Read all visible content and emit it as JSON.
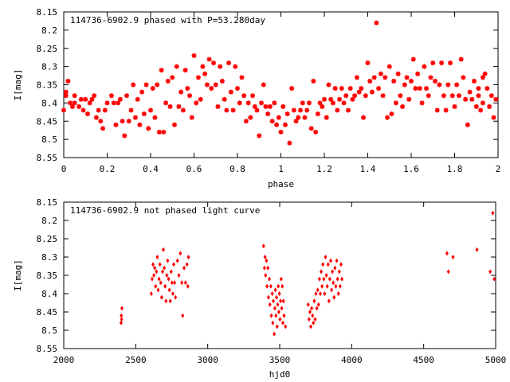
{
  "chart_data": [
    {
      "type": "scatter",
      "title": "114736-6902.9 phased with P=53.280day",
      "xlabel": "phase",
      "ylabel": "I[mag]",
      "xlim": [
        0,
        2
      ],
      "ylim": [
        8.55,
        8.15
      ],
      "y_inverted": true,
      "grid": false,
      "marker_color": "#ff0000",
      "x_ticks": [
        0,
        0.2,
        0.4,
        0.6,
        0.8,
        1,
        1.2,
        1.4,
        1.6,
        1.8,
        2
      ],
      "x_tick_labels": [
        "0",
        "0.2",
        "0.4",
        "0.6",
        "0.8",
        "1",
        "1.2",
        "1.4",
        "1.6",
        "1.8",
        "2"
      ],
      "y_ticks": [
        8.15,
        8.2,
        8.25,
        8.3,
        8.35,
        8.4,
        8.45,
        8.5,
        8.55
      ],
      "y_tick_labels": [
        "8.15",
        "8.2",
        "8.25",
        "8.3",
        "8.35",
        "8.4",
        "8.45",
        "8.5",
        "8.55"
      ],
      "points": [
        [
          0.0,
          8.42
        ],
        [
          0.01,
          8.37
        ],
        [
          0.01,
          8.38
        ],
        [
          0.02,
          8.34
        ],
        [
          0.03,
          8.4
        ],
        [
          0.04,
          8.41
        ],
        [
          0.05,
          8.38
        ],
        [
          0.05,
          8.4
        ],
        [
          0.07,
          8.41
        ],
        [
          0.08,
          8.39
        ],
        [
          0.09,
          8.42
        ],
        [
          0.1,
          8.39
        ],
        [
          0.11,
          8.43
        ],
        [
          0.12,
          8.4
        ],
        [
          0.13,
          8.39
        ],
        [
          0.14,
          8.38
        ],
        [
          0.15,
          8.44
        ],
        [
          0.16,
          8.42
        ],
        [
          0.17,
          8.45
        ],
        [
          0.18,
          8.47
        ],
        [
          0.19,
          8.42
        ],
        [
          0.2,
          8.4
        ],
        [
          0.22,
          8.38
        ],
        [
          0.23,
          8.4
        ],
        [
          0.24,
          8.46
        ],
        [
          0.25,
          8.4
        ],
        [
          0.26,
          8.39
        ],
        [
          0.27,
          8.45
        ],
        [
          0.28,
          8.49
        ],
        [
          0.29,
          8.38
        ],
        [
          0.3,
          8.45
        ],
        [
          0.31,
          8.42
        ],
        [
          0.32,
          8.35
        ],
        [
          0.33,
          8.44
        ],
        [
          0.34,
          8.39
        ],
        [
          0.35,
          8.46
        ],
        [
          0.36,
          8.37
        ],
        [
          0.37,
          8.43
        ],
        [
          0.38,
          8.35
        ],
        [
          0.39,
          8.47
        ],
        [
          0.4,
          8.42
        ],
        [
          0.41,
          8.36
        ],
        [
          0.42,
          8.44
        ],
        [
          0.43,
          8.35
        ],
        [
          0.44,
          8.48
        ],
        [
          0.45,
          8.31
        ],
        [
          0.46,
          8.48
        ],
        [
          0.47,
          8.4
        ],
        [
          0.48,
          8.34
        ],
        [
          0.49,
          8.41
        ],
        [
          0.5,
          8.33
        ],
        [
          0.51,
          8.46
        ],
        [
          0.52,
          8.3
        ],
        [
          0.53,
          8.41
        ],
        [
          0.54,
          8.37
        ],
        [
          0.55,
          8.42
        ],
        [
          0.56,
          8.31
        ],
        [
          0.57,
          8.36
        ],
        [
          0.58,
          8.38
        ],
        [
          0.59,
          8.44
        ],
        [
          0.6,
          8.27
        ],
        [
          0.61,
          8.4
        ],
        [
          0.62,
          8.33
        ],
        [
          0.63,
          8.39
        ],
        [
          0.64,
          8.3
        ],
        [
          0.65,
          8.32
        ],
        [
          0.66,
          8.35
        ],
        [
          0.67,
          8.28
        ],
        [
          0.68,
          8.36
        ],
        [
          0.69,
          8.29
        ],
        [
          0.7,
          8.35
        ],
        [
          0.71,
          8.41
        ],
        [
          0.72,
          8.3
        ],
        [
          0.73,
          8.34
        ],
        [
          0.74,
          8.39
        ],
        [
          0.75,
          8.42
        ],
        [
          0.76,
          8.29
        ],
        [
          0.77,
          8.37
        ],
        [
          0.78,
          8.42
        ],
        [
          0.79,
          8.3
        ],
        [
          0.8,
          8.36
        ],
        [
          0.81,
          8.4
        ],
        [
          0.82,
          8.33
        ],
        [
          0.83,
          8.38
        ],
        [
          0.84,
          8.45
        ],
        [
          0.85,
          8.4
        ],
        [
          0.86,
          8.44
        ],
        [
          0.87,
          8.38
        ],
        [
          0.88,
          8.41
        ],
        [
          0.89,
          8.42
        ],
        [
          0.9,
          8.49
        ],
        [
          0.91,
          8.4
        ],
        [
          0.92,
          8.35
        ],
        [
          0.93,
          8.41
        ],
        [
          0.94,
          8.43
        ],
        [
          0.95,
          8.41
        ],
        [
          0.96,
          8.45
        ],
        [
          0.97,
          8.4
        ],
        [
          0.98,
          8.46
        ],
        [
          0.99,
          8.44
        ],
        [
          1.0,
          8.48
        ],
        [
          1.01,
          8.41
        ],
        [
          1.02,
          8.46
        ],
        [
          1.03,
          8.43
        ],
        [
          1.04,
          8.51
        ],
        [
          1.05,
          8.36
        ],
        [
          1.06,
          8.42
        ],
        [
          1.07,
          8.45
        ],
        [
          1.08,
          8.44
        ],
        [
          1.09,
          8.42
        ],
        [
          1.1,
          8.4
        ],
        [
          1.11,
          8.44
        ],
        [
          1.12,
          8.42
        ],
        [
          1.13,
          8.4
        ],
        [
          1.14,
          8.47
        ],
        [
          1.15,
          8.34
        ],
        [
          1.16,
          8.48
        ],
        [
          1.17,
          8.43
        ],
        [
          1.18,
          8.4
        ],
        [
          1.19,
          8.41
        ],
        [
          1.2,
          8.39
        ],
        [
          1.21,
          8.44
        ],
        [
          1.22,
          8.35
        ],
        [
          1.23,
          8.39
        ],
        [
          1.24,
          8.4
        ],
        [
          1.25,
          8.36
        ],
        [
          1.26,
          8.42
        ],
        [
          1.27,
          8.39
        ],
        [
          1.28,
          8.36
        ],
        [
          1.29,
          8.4
        ],
        [
          1.3,
          8.38
        ],
        [
          1.31,
          8.42
        ],
        [
          1.32,
          8.36
        ],
        [
          1.33,
          8.39
        ],
        [
          1.34,
          8.38
        ],
        [
          1.35,
          8.33
        ],
        [
          1.36,
          8.37
        ],
        [
          1.37,
          8.36
        ],
        [
          1.38,
          8.44
        ],
        [
          1.39,
          8.38
        ],
        [
          1.4,
          8.29
        ],
        [
          1.41,
          8.34
        ],
        [
          1.42,
          8.37
        ],
        [
          1.43,
          8.33
        ],
        [
          1.44,
          8.18
        ],
        [
          1.45,
          8.36
        ],
        [
          1.46,
          8.32
        ],
        [
          1.47,
          8.38
        ],
        [
          1.48,
          8.33
        ],
        [
          1.49,
          8.44
        ],
        [
          1.5,
          8.3
        ],
        [
          1.51,
          8.43
        ],
        [
          1.52,
          8.34
        ],
        [
          1.53,
          8.4
        ],
        [
          1.54,
          8.32
        ],
        [
          1.55,
          8.38
        ],
        [
          1.56,
          8.41
        ],
        [
          1.57,
          8.35
        ],
        [
          1.58,
          8.33
        ],
        [
          1.59,
          8.39
        ],
        [
          1.6,
          8.34
        ],
        [
          1.61,
          8.28
        ],
        [
          1.62,
          8.36
        ],
        [
          1.63,
          8.32
        ],
        [
          1.64,
          8.36
        ],
        [
          1.65,
          8.4
        ],
        [
          1.66,
          8.3
        ],
        [
          1.67,
          8.36
        ],
        [
          1.68,
          8.38
        ],
        [
          1.69,
          8.33
        ],
        [
          1.7,
          8.29
        ],
        [
          1.71,
          8.34
        ],
        [
          1.72,
          8.42
        ],
        [
          1.73,
          8.35
        ],
        [
          1.74,
          8.29
        ],
        [
          1.75,
          8.38
        ],
        [
          1.76,
          8.42
        ],
        [
          1.77,
          8.35
        ],
        [
          1.78,
          8.29
        ],
        [
          1.79,
          8.38
        ],
        [
          1.8,
          8.41
        ],
        [
          1.81,
          8.35
        ],
        [
          1.82,
          8.38
        ],
        [
          1.83,
          8.28
        ],
        [
          1.84,
          8.33
        ],
        [
          1.85,
          8.39
        ],
        [
          1.86,
          8.46
        ],
        [
          1.87,
          8.37
        ],
        [
          1.88,
          8.39
        ],
        [
          1.89,
          8.34
        ],
        [
          1.9,
          8.41
        ],
        [
          1.91,
          8.38
        ],
        [
          1.92,
          8.42
        ],
        [
          1.93,
          8.4
        ],
        [
          1.94,
          8.32
        ],
        [
          1.95,
          8.36
        ],
        [
          1.96,
          8.41
        ],
        [
          1.97,
          8.38
        ],
        [
          1.98,
          8.44
        ],
        [
          1.99,
          8.39
        ],
        [
          1.93,
          8.33
        ],
        [
          1.91,
          8.36
        ]
      ]
    },
    {
      "type": "scatter",
      "title": "114736-6902.9 not phased light curve",
      "xlabel": "hjd0",
      "ylabel": "I[mag]",
      "xlim": [
        2000,
        5000
      ],
      "ylim": [
        8.55,
        8.15
      ],
      "y_inverted": true,
      "grid": false,
      "marker_color": "#ff0000",
      "x_ticks": [
        2000,
        2500,
        3000,
        3500,
        4000,
        4500,
        5000
      ],
      "x_tick_labels": [
        "2000",
        "2500",
        "3000",
        "3500",
        "4000",
        "4500",
        "5000"
      ],
      "y_ticks": [
        8.15,
        8.2,
        8.25,
        8.3,
        8.35,
        8.4,
        8.45,
        8.5,
        8.55
      ],
      "y_tick_labels": [
        "8.15",
        "8.2",
        "8.25",
        "8.3",
        "8.35",
        "8.4",
        "8.45",
        "8.5",
        "8.55"
      ],
      "points": [
        [
          2398,
          8.48
        ],
        [
          2400,
          8.46
        ],
        [
          2402,
          8.47
        ],
        [
          2404,
          8.44
        ],
        [
          2608,
          8.4
        ],
        [
          2614,
          8.36
        ],
        [
          2620,
          8.32
        ],
        [
          2626,
          8.35
        ],
        [
          2632,
          8.33
        ],
        [
          2638,
          8.38
        ],
        [
          2644,
          8.34
        ],
        [
          2650,
          8.3
        ],
        [
          2656,
          8.39
        ],
        [
          2662,
          8.36
        ],
        [
          2668,
          8.32
        ],
        [
          2674,
          8.37
        ],
        [
          2680,
          8.41
        ],
        [
          2686,
          8.34
        ],
        [
          2692,
          8.28
        ],
        [
          2698,
          8.33
        ],
        [
          2704,
          8.38
        ],
        [
          2710,
          8.42
        ],
        [
          2716,
          8.35
        ],
        [
          2722,
          8.31
        ],
        [
          2728,
          8.36
        ],
        [
          2734,
          8.39
        ],
        [
          2740,
          8.42
        ],
        [
          2746,
          8.34
        ],
        [
          2752,
          8.37
        ],
        [
          2758,
          8.4
        ],
        [
          2764,
          8.32
        ],
        [
          2770,
          8.37
        ],
        [
          2776,
          8.41
        ],
        [
          2790,
          8.31
        ],
        [
          2800,
          8.35
        ],
        [
          2810,
          8.29
        ],
        [
          2820,
          8.37
        ],
        [
          2826,
          8.46
        ],
        [
          2836,
          8.33
        ],
        [
          2846,
          8.37
        ],
        [
          2856,
          8.32
        ],
        [
          2862,
          8.38
        ],
        [
          2866,
          8.3
        ],
        [
          3388,
          8.27
        ],
        [
          3394,
          8.33
        ],
        [
          3398,
          8.3
        ],
        [
          3402,
          8.35
        ],
        [
          3408,
          8.31
        ],
        [
          3412,
          8.38
        ],
        [
          3418,
          8.33
        ],
        [
          3422,
          8.41
        ],
        [
          3428,
          8.36
        ],
        [
          3432,
          8.43
        ],
        [
          3438,
          8.38
        ],
        [
          3442,
          8.46
        ],
        [
          3448,
          8.4
        ],
        [
          3452,
          8.48
        ],
        [
          3456,
          8.42
        ],
        [
          3462,
          8.51
        ],
        [
          3466,
          8.44
        ],
        [
          3470,
          8.39
        ],
        [
          3474,
          8.46
        ],
        [
          3478,
          8.41
        ],
        [
          3482,
          8.49
        ],
        [
          3486,
          8.43
        ],
        [
          3490,
          8.38
        ],
        [
          3494,
          8.45
        ],
        [
          3498,
          8.4
        ],
        [
          3502,
          8.47
        ],
        [
          3506,
          8.42
        ],
        [
          3510,
          8.36
        ],
        [
          3514,
          8.44
        ],
        [
          3518,
          8.38
        ],
        [
          3522,
          8.48
        ],
        [
          3526,
          8.42
        ],
        [
          3530,
          8.46
        ],
        [
          3540,
          8.49
        ],
        [
          3698,
          8.43
        ],
        [
          3704,
          8.47
        ],
        [
          3710,
          8.45
        ],
        [
          3716,
          8.49
        ],
        [
          3722,
          8.44
        ],
        [
          3728,
          8.46
        ],
        [
          3734,
          8.48
        ],
        [
          3740,
          8.42
        ],
        [
          3746,
          8.47
        ],
        [
          3752,
          8.4
        ],
        [
          3758,
          8.44
        ],
        [
          3764,
          8.39
        ],
        [
          3770,
          8.43
        ],
        [
          3776,
          8.36
        ],
        [
          3782,
          8.4
        ],
        [
          3788,
          8.34
        ],
        [
          3794,
          8.38
        ],
        [
          3800,
          8.32
        ],
        [
          3806,
          8.36
        ],
        [
          3812,
          8.4
        ],
        [
          3818,
          8.3
        ],
        [
          3824,
          8.35
        ],
        [
          3830,
          8.38
        ],
        [
          3836,
          8.32
        ],
        [
          3842,
          8.42
        ],
        [
          3848,
          8.36
        ],
        [
          3854,
          8.31
        ],
        [
          3860,
          8.39
        ],
        [
          3866,
          8.34
        ],
        [
          3872,
          8.37
        ],
        [
          3878,
          8.41
        ],
        [
          3884,
          8.33
        ],
        [
          3890,
          8.38
        ],
        [
          3896,
          8.31
        ],
        [
          3902,
          8.36
        ],
        [
          3908,
          8.4
        ],
        [
          3914,
          8.34
        ],
        [
          3920,
          8.38
        ],
        [
          3926,
          8.32
        ],
        [
          3932,
          8.36
        ],
        [
          4662,
          8.29
        ],
        [
          4672,
          8.34
        ],
        [
          4704,
          8.3
        ],
        [
          4870,
          8.28
        ],
        [
          4962,
          8.34
        ],
        [
          4980,
          8.18
        ],
        [
          4990,
          8.36
        ]
      ]
    }
  ]
}
